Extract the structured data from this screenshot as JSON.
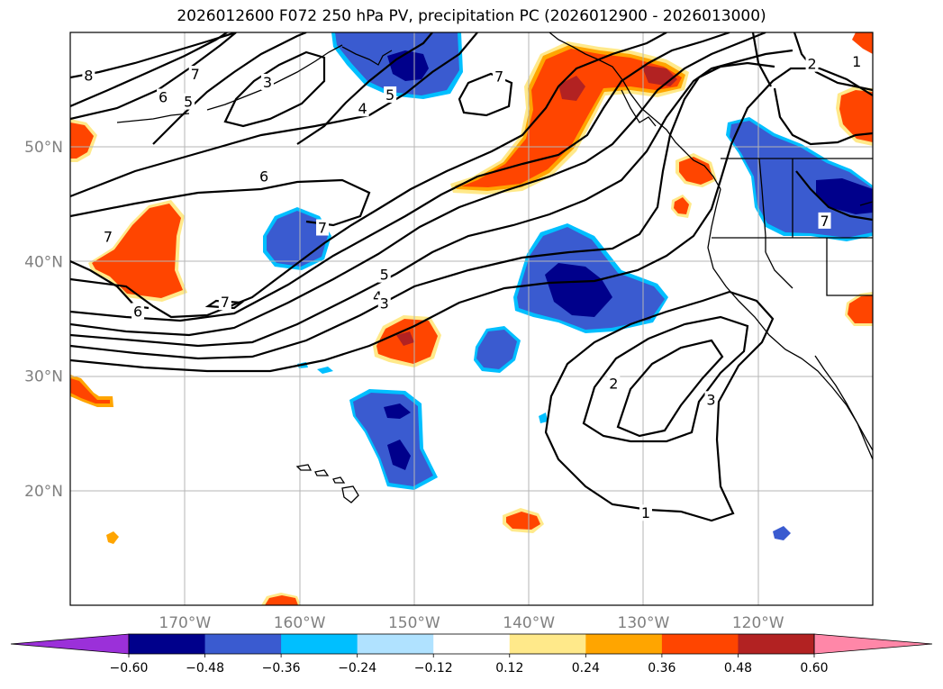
{
  "title": "2026012600 F072 250 hPa PV, precipitation PC (2026012900 - 2026013000)",
  "map": {
    "lon_range": [
      -180,
      -110
    ],
    "lat_range": [
      10,
      60
    ],
    "lon_ticks": [
      {
        "lon": -170,
        "label": "170°W"
      },
      {
        "lon": -160,
        "label": "160°W"
      },
      {
        "lon": -150,
        "label": "150°W"
      },
      {
        "lon": -140,
        "label": "140°W"
      },
      {
        "lon": -130,
        "label": "130°W"
      },
      {
        "lon": -120,
        "label": "120°W"
      }
    ],
    "lat_ticks": [
      {
        "lat": 20,
        "label": "20°N"
      },
      {
        "lat": 30,
        "label": "30°N"
      },
      {
        "lat": 40,
        "label": "40°N"
      },
      {
        "lat": 50,
        "label": "50°N"
      }
    ]
  },
  "colorbar": {
    "colors": [
      "#9b30d9",
      "#00008b",
      "#3a5bd0",
      "#00bfff",
      "#b0e2ff",
      "#ffffff",
      "#ffe98a",
      "#ffa500",
      "#ff4500",
      "#b22222",
      "#ff87a8"
    ],
    "tick_labels": [
      "−0.60",
      "−0.48",
      "−0.36",
      "−0.24",
      "−0.12",
      "0.12",
      "0.24",
      "0.36",
      "0.48",
      "0.60"
    ],
    "extend": "both"
  },
  "contour_labels": [
    {
      "text": "8",
      "lon": -178.4,
      "lat": 56.2
    },
    {
      "text": "7",
      "lon": -169.1,
      "lat": 56.3
    },
    {
      "text": "6",
      "lon": -171.9,
      "lat": 54.3
    },
    {
      "text": "5",
      "lon": -169.7,
      "lat": 53.9
    },
    {
      "text": "3",
      "lon": -162.8,
      "lat": 55.6
    },
    {
      "text": "4",
      "lon": -154.5,
      "lat": 53.3
    },
    {
      "text": "5",
      "lon": -152.1,
      "lat": 54.5
    },
    {
      "text": "7",
      "lon": -142.6,
      "lat": 56.1
    },
    {
      "text": "6",
      "lon": -163.1,
      "lat": 47.4
    },
    {
      "text": "7",
      "lon": -158.0,
      "lat": 42.9
    },
    {
      "text": "7",
      "lon": -176.7,
      "lat": 42.1
    },
    {
      "text": "7",
      "lon": -166.5,
      "lat": 36.4
    },
    {
      "text": "6",
      "lon": -174.1,
      "lat": 35.6
    },
    {
      "text": "5",
      "lon": -152.6,
      "lat": 38.8
    },
    {
      "text": "4",
      "lon": -153.2,
      "lat": 36.9
    },
    {
      "text": "3",
      "lon": -152.6,
      "lat": 36.3
    },
    {
      "text": "2",
      "lon": -132.6,
      "lat": 29.3
    },
    {
      "text": "3",
      "lon": -124.1,
      "lat": 27.9
    },
    {
      "text": "1",
      "lon": -129.8,
      "lat": 18.0
    },
    {
      "text": "2",
      "lon": -115.3,
      "lat": 57.2
    },
    {
      "text": "1",
      "lon": -111.4,
      "lat": 57.4
    },
    {
      "text": "7",
      "lon": -114.2,
      "lat": 43.5
    }
  ]
}
